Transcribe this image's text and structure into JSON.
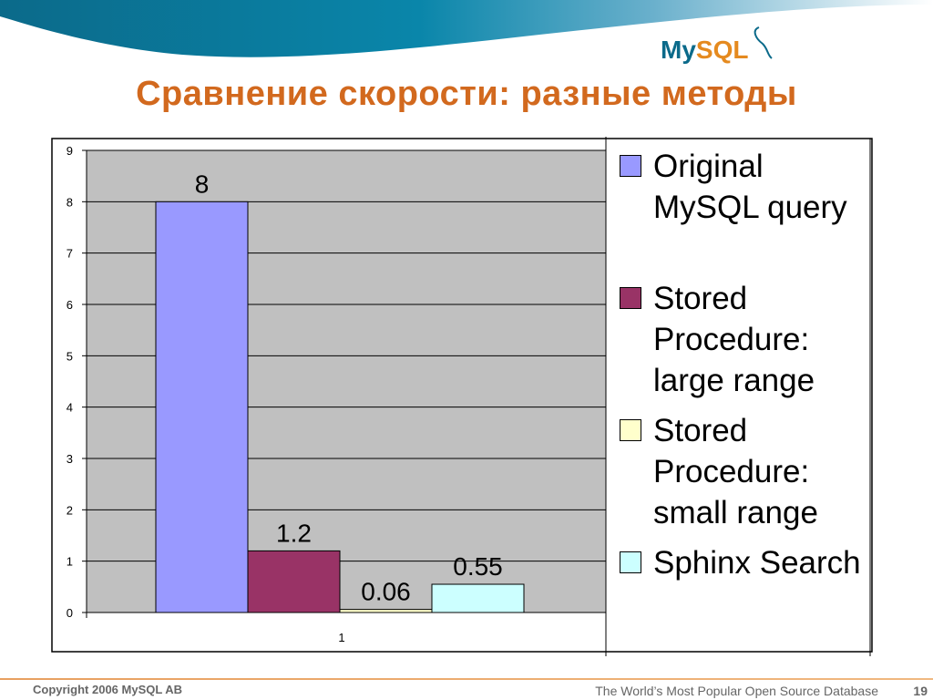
{
  "slide": {
    "title": "Сравнение скорости: разные методы",
    "logo_text": "MySQL",
    "footer": {
      "copyright": "Copyright 2006 MySQL AB",
      "tagline": "The World’s Most Popular Open Source Database",
      "page_number": "19"
    }
  },
  "chart_data": {
    "type": "bar",
    "categories": [
      "1"
    ],
    "series": [
      {
        "name": "Original MySQL query",
        "values": [
          8
        ],
        "label": "8",
        "color": "#9999ff"
      },
      {
        "name": "Stored Procedure: large range",
        "values": [
          1.2
        ],
        "label": "1.2",
        "color": "#993366"
      },
      {
        "name": "Stored Procedure: small range",
        "values": [
          0.06
        ],
        "label": "0.06",
        "color": "#ffffcc"
      },
      {
        "name": "Sphinx Search",
        "values": [
          0.55
        ],
        "label": "0.55",
        "color": "#ccffff"
      }
    ],
    "ylim": [
      0,
      9
    ],
    "yticks": [
      "0",
      "1",
      "2",
      "3",
      "4",
      "5",
      "6",
      "7",
      "8",
      "9"
    ],
    "grid": true,
    "plot_background": "#c0c0c0",
    "legend_position": "right",
    "title": "",
    "xlabel": "",
    "ylabel": ""
  }
}
